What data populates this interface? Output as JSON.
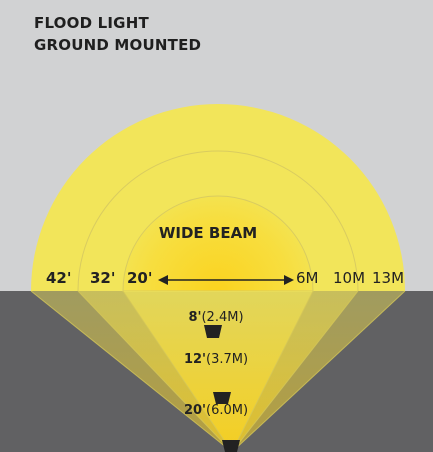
{
  "title": {
    "line1": "FLOOD LIGHT",
    "line2": "GROUND MOUNTED"
  },
  "beam_label": "WIDE BEAM",
  "rings_feet": [
    "42'",
    "32'",
    "20'"
  ],
  "rings_meters": [
    "6M",
    "10M",
    "13M"
  ],
  "distances": [
    {
      "feet": "8'",
      "meters": "(2.4M)"
    },
    {
      "feet": "12'",
      "meters": "(3.7M)"
    },
    {
      "feet": "20'",
      "meters": "(6.0M)"
    }
  ],
  "colors": {
    "background": "#d1d2d3",
    "ground": "#616163",
    "beam": "#f2e55a",
    "beam_core": "#fbd31f",
    "fixture": "#222222"
  },
  "icons": [
    "double-arrow-icon",
    "fixture-icon"
  ]
}
